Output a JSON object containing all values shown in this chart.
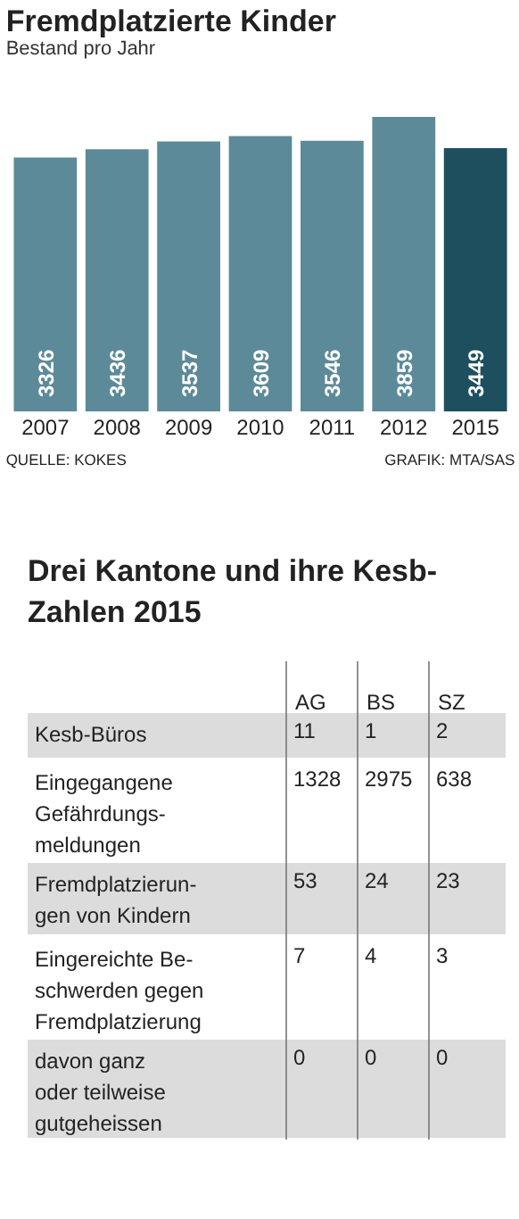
{
  "chart_data": [
    {
      "type": "bar",
      "title": "Fremdplatzierte Kinder",
      "subtitle": "Bestand pro Jahr",
      "categories": [
        "2007",
        "2008",
        "2009",
        "2010",
        "2011",
        "2012",
        "2015"
      ],
      "values": [
        3326,
        3436,
        3537,
        3609,
        3546,
        3859,
        3449
      ],
      "colors": [
        "#5c8a99",
        "#5c8a99",
        "#5c8a99",
        "#5c8a99",
        "#5c8a99",
        "#5c8a99",
        "#1d4f5f"
      ],
      "data_labels": true,
      "annotations": [
        "QUELLE: KOKES",
        "GRAFIK: MTA/SAS"
      ]
    },
    {
      "type": "heatmap",
      "title": "Drei Kantone und ihre Kesb-\nZahlen 2015",
      "categories": [
        "AG",
        "BS",
        "SZ"
      ],
      "y_categories": [
        "Kesb-Büros",
        "Eingegangene\nGefährdungs-\nmeldungen",
        "Fremdplatzierun-\ngen von Kindern",
        "Eingereichte Be-\nschwerden gegen\nFremdplatzierung",
        "davon ganz\noder teilweise\ngutgeheissen"
      ],
      "cells": [
        [
          11,
          1,
          2
        ],
        [
          1328,
          2975,
          638
        ],
        [
          53,
          24,
          23
        ],
        [
          7,
          4,
          3
        ],
        [
          0,
          0,
          0
        ]
      ],
      "data_labels": true,
      "colors": [
        "#dcdcdc",
        "#ffffff",
        "#dcdcdc",
        "#ffffff",
        "#dcdcdc"
      ]
    }
  ]
}
